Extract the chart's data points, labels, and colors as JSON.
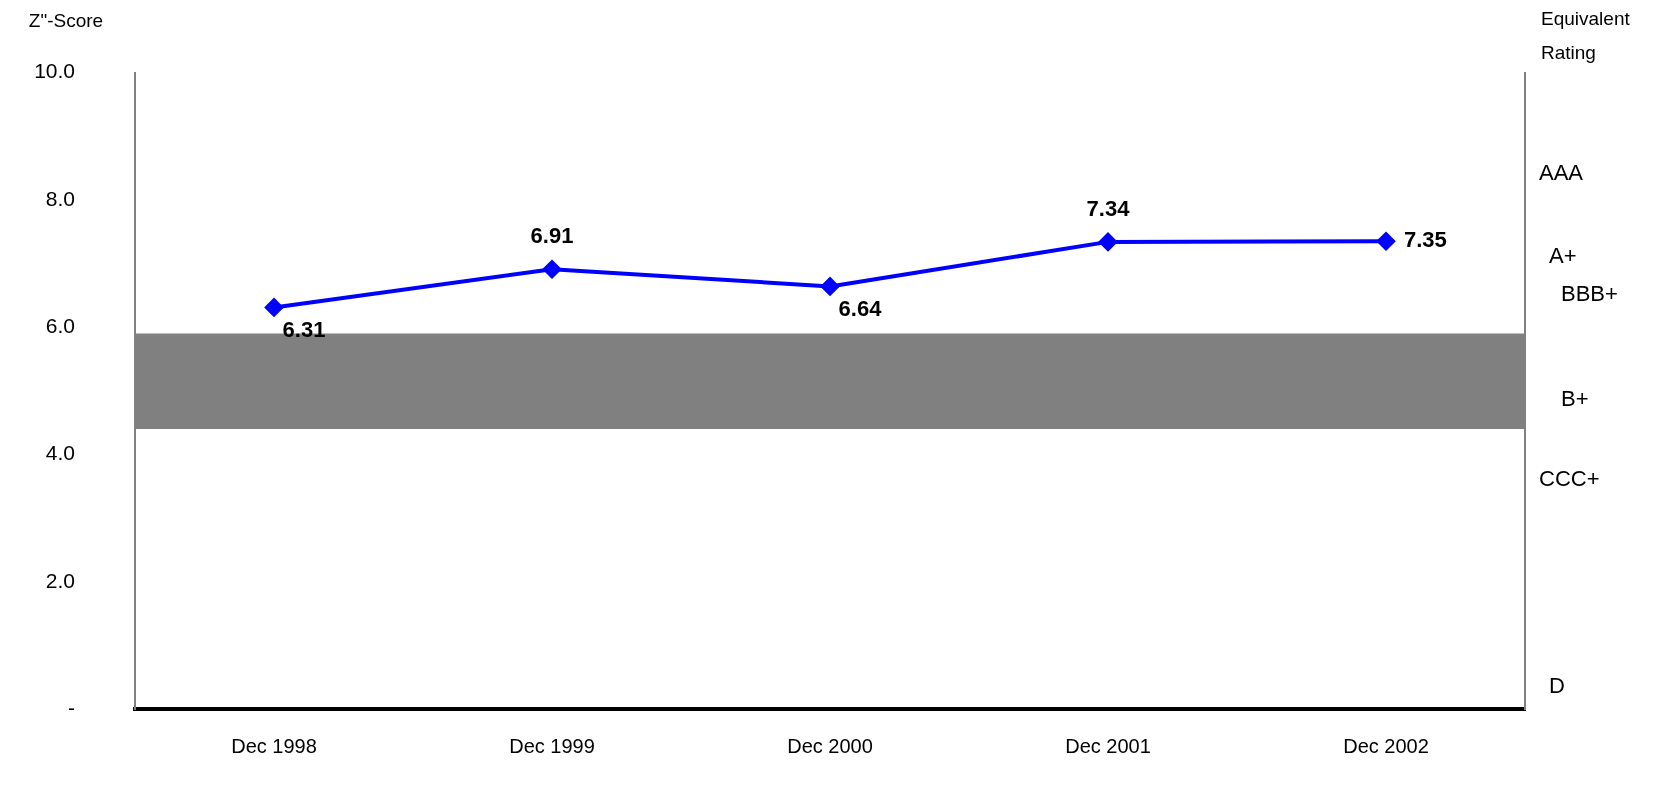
{
  "chart_data": {
    "type": "line",
    "ylabel": "Z\"-Score",
    "y2label": "Equivalent Rating",
    "categories": [
      "Dec 1998",
      "Dec 1999",
      "Dec 2000",
      "Dec 2001",
      "Dec 2002"
    ],
    "series": [
      {
        "color": "#0000ff",
        "values": [
          6.31,
          6.91,
          6.64,
          7.34,
          7.35
        ]
      }
    ],
    "ylim": [
      0,
      10
    ],
    "yticks": [
      {
        "value": 0,
        "label": "-"
      },
      {
        "value": 2,
        "label": "2.0"
      },
      {
        "value": 4,
        "label": "4.0"
      },
      {
        "value": 6,
        "label": "6.0"
      },
      {
        "value": 8,
        "label": "8.0"
      },
      {
        "value": 10,
        "label": "10.0"
      }
    ],
    "annotations": [
      "AAA",
      "A+",
      "BBB+",
      "B+",
      "CCC+",
      "D"
    ],
    "bands": [
      {
        "axis": "y",
        "from": 4.4,
        "to": 5.9,
        "color": "#808080"
      }
    ],
    "marker": "diamond",
    "line_style": "solid",
    "data_labels": true,
    "grid": false,
    "legend": false
  }
}
